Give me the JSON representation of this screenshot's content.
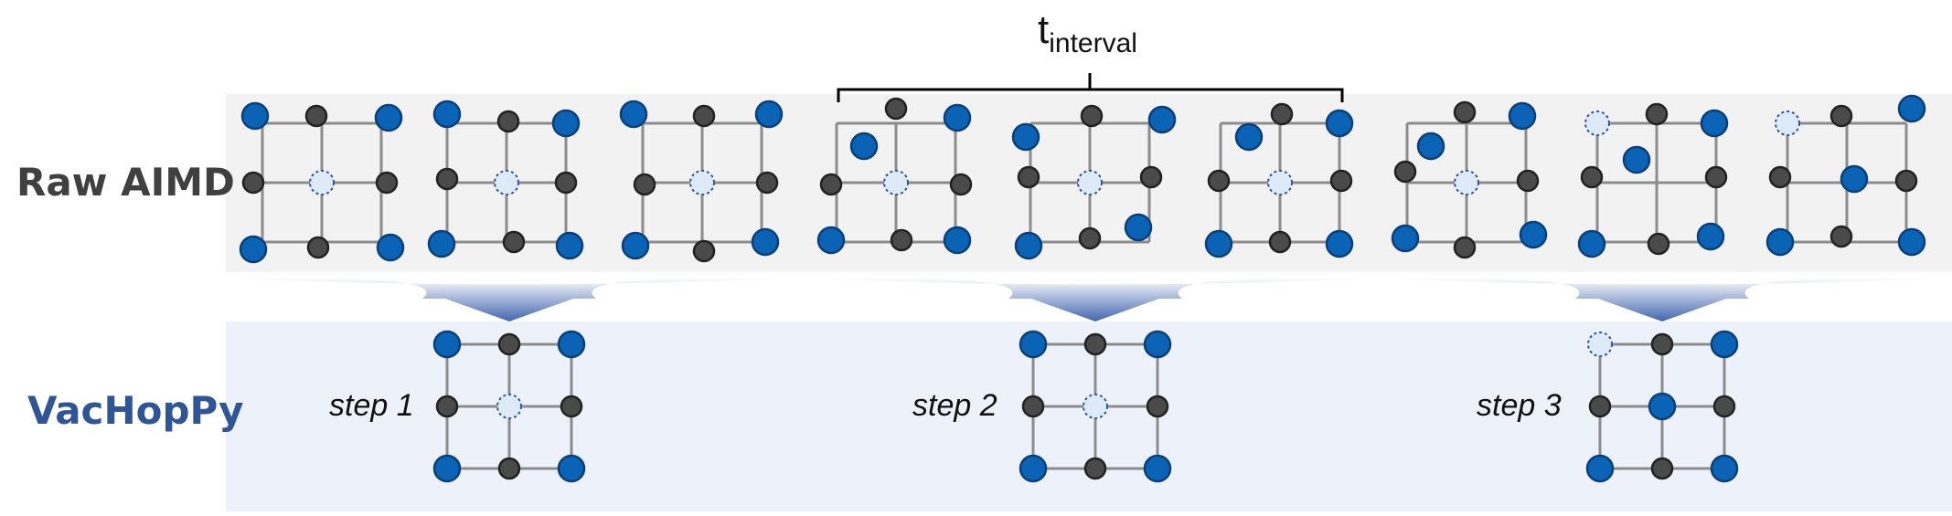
{
  "labels": {
    "raw": "Raw AIMD",
    "vachoppy": "VacHopPy",
    "interval_main": "t",
    "interval_sub": "interval",
    "steps": [
      "step 1",
      "step 2",
      "step 3"
    ]
  },
  "colors": {
    "panel_top": "#f2f2f2",
    "panel_bottom": "#edf2fa",
    "blue_atom": "#0b63b6",
    "gray_atom": "#4a4a4a",
    "vacancy": "#ddeaf8",
    "bond": "#8c8c8c",
    "label_dark": "#404040",
    "label_blue": "#2f5597"
  }
}
